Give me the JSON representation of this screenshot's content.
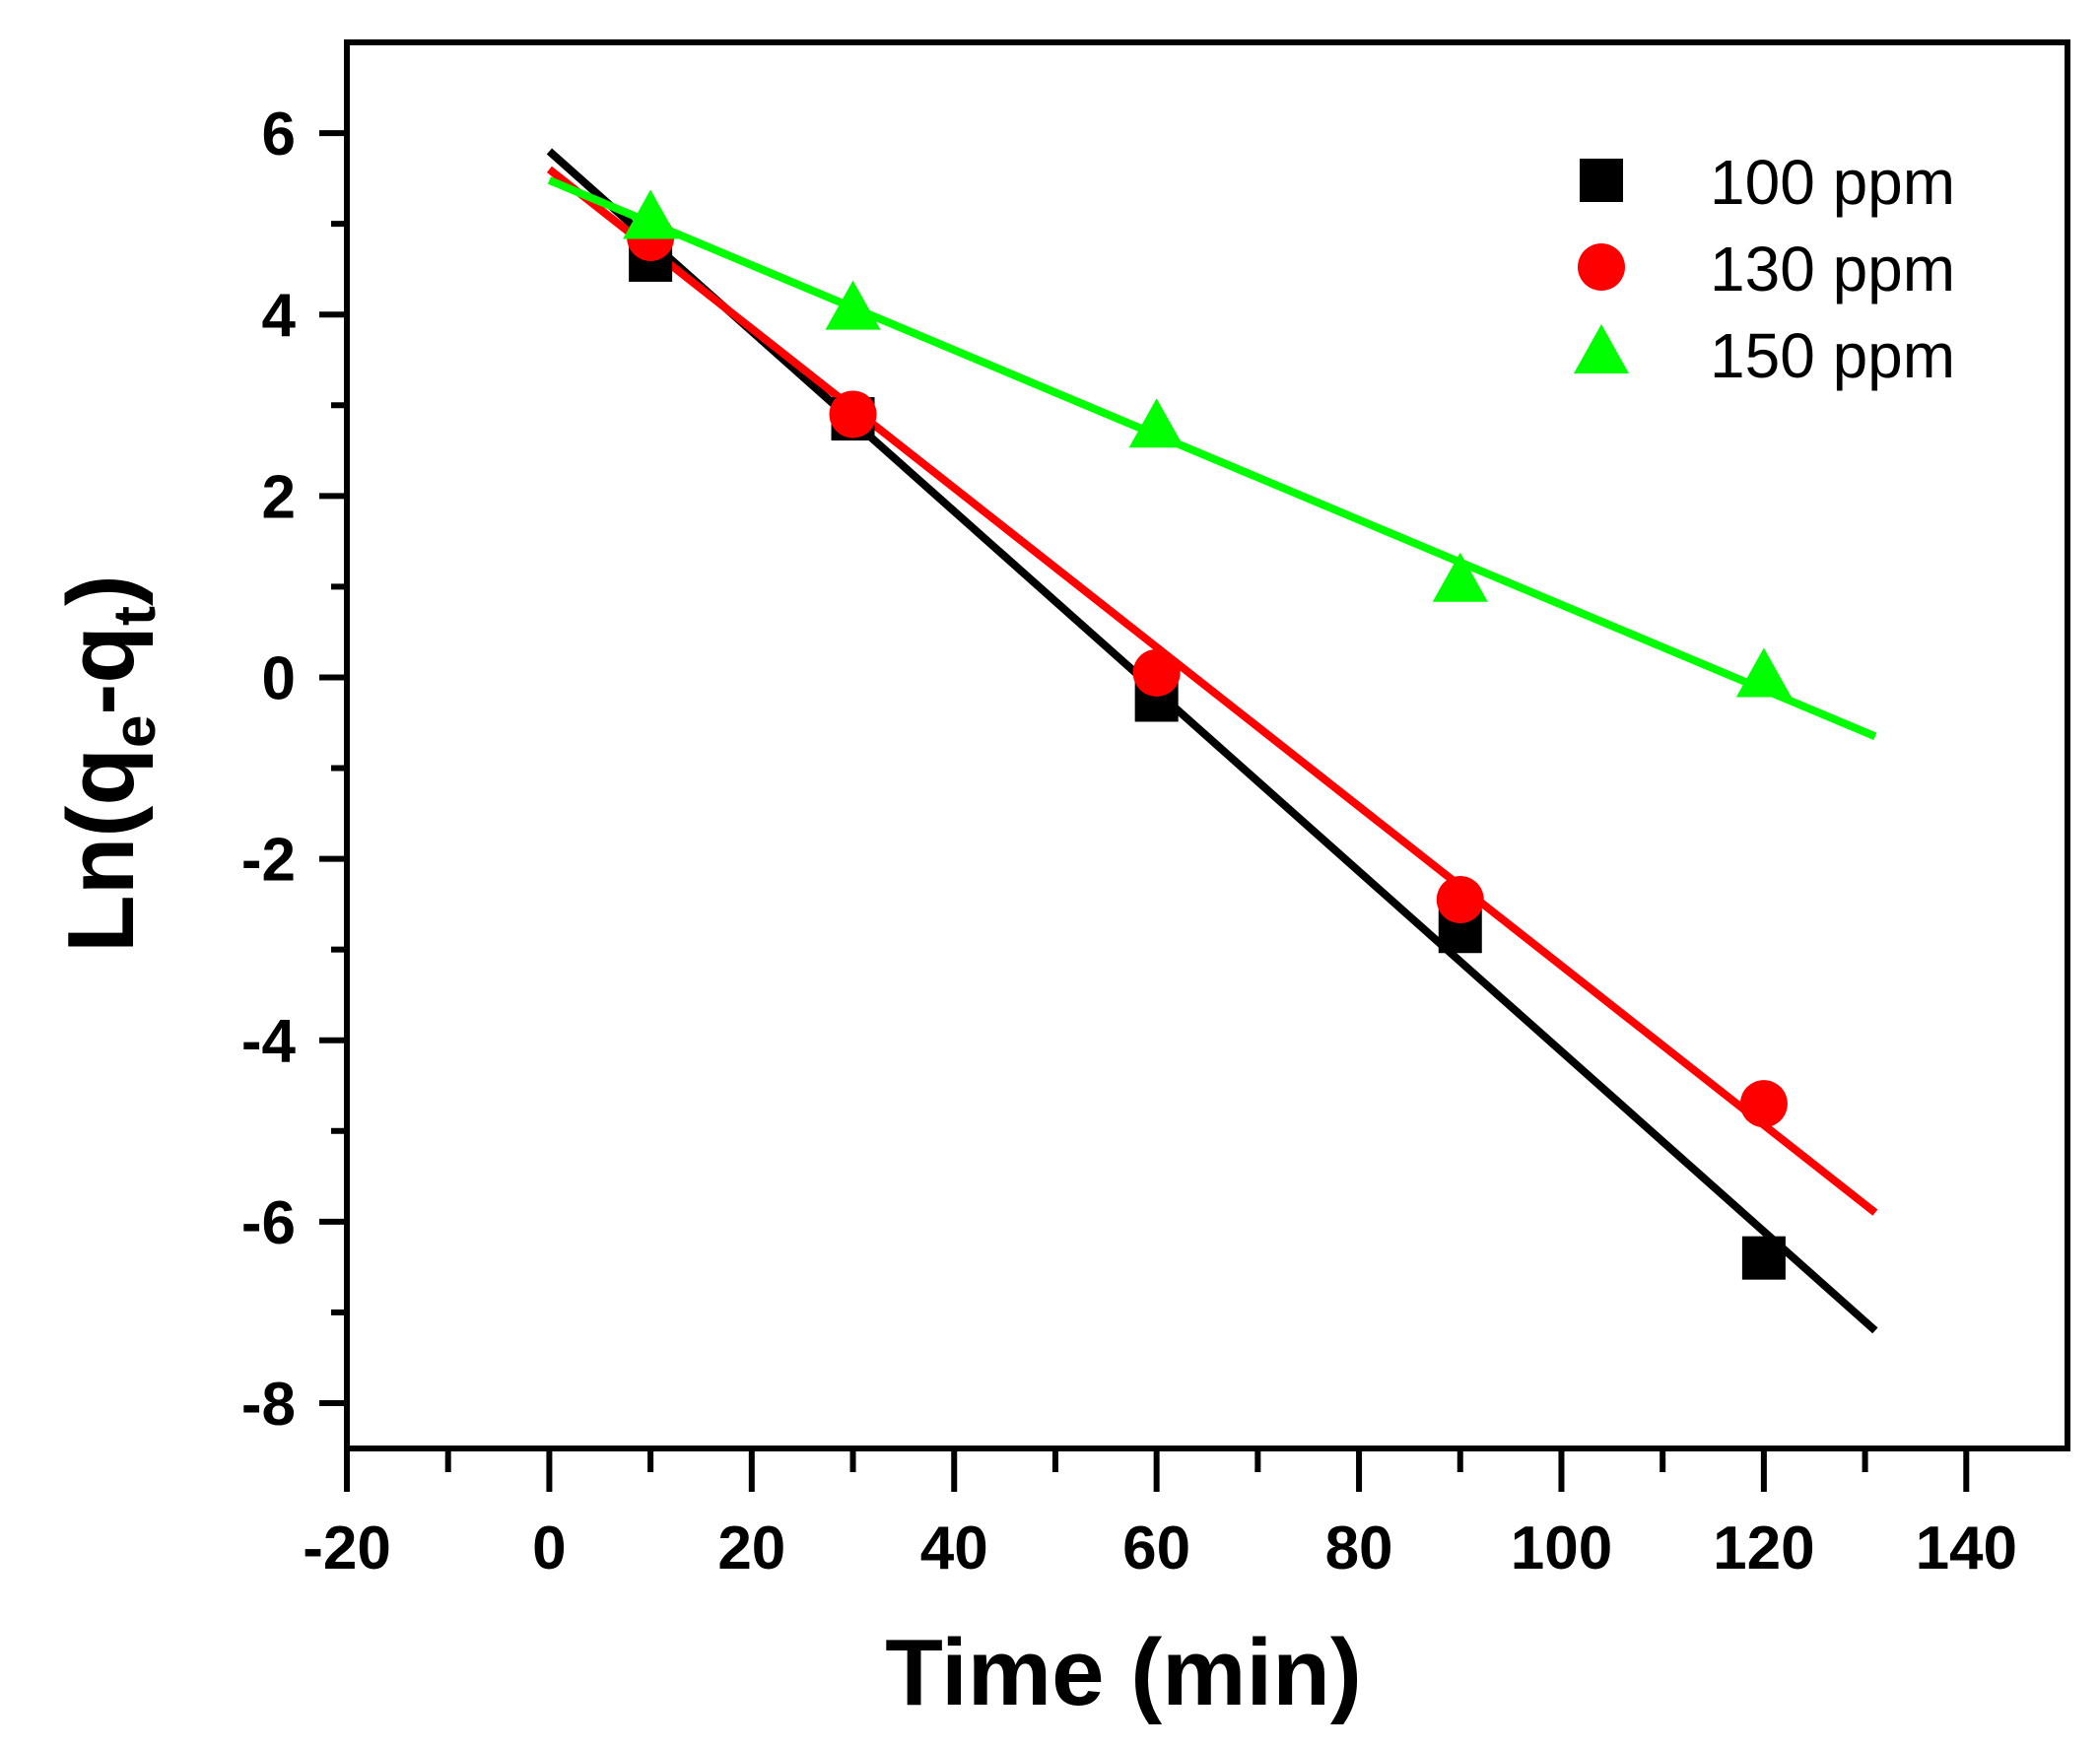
{
  "chart_data": {
    "type": "scatter",
    "title": "",
    "xlabel": "Time (min)",
    "ylabel": {
      "prefix": "Ln(q",
      "sub1": "e",
      "middle": "-q",
      "sub2": "t",
      "suffix": ")"
    },
    "xlim": [
      -20,
      150
    ],
    "ylim": [
      -8.5,
      7
    ],
    "x_ticks": [
      -20,
      0,
      20,
      40,
      60,
      80,
      100,
      120,
      140
    ],
    "x_tick_labels": [
      "-20",
      "0",
      "20",
      "40",
      "60",
      "80",
      "100",
      "120",
      "140"
    ],
    "y_ticks": [
      -8,
      -6,
      -4,
      -2,
      0,
      2,
      4,
      6
    ],
    "y_tick_labels": [
      "-8",
      "-6",
      "-4",
      "-2",
      "0",
      "2",
      "4",
      "6"
    ],
    "grid": false,
    "legend_position": "top-right",
    "series": [
      {
        "name": "100 ppm",
        "marker": "square",
        "color": "#000000",
        "x": [
          10,
          30,
          60,
          90,
          120
        ],
        "y": [
          4.6,
          2.85,
          -0.25,
          -2.8,
          -6.4
        ],
        "fit": {
          "x": [
            0,
            131
          ],
          "y": [
            5.8,
            -7.2
          ]
        }
      },
      {
        "name": "130 ppm",
        "marker": "circle",
        "color": "#ff0000",
        "x": [
          10,
          30,
          60,
          90,
          120
        ],
        "y": [
          4.85,
          2.9,
          0.05,
          -2.45,
          -4.7
        ],
        "fit": {
          "x": [
            0,
            131
          ],
          "y": [
            5.6,
            -5.9
          ]
        }
      },
      {
        "name": "150 ppm",
        "marker": "triangle",
        "color": "#00ff00",
        "x": [
          10,
          30,
          60,
          90,
          120
        ],
        "y": [
          5.05,
          4.05,
          2.75,
          1.05,
          0.0
        ],
        "fit": {
          "x": [
            0,
            131
          ],
          "y": [
            5.48,
            -0.65
          ]
        }
      }
    ]
  }
}
